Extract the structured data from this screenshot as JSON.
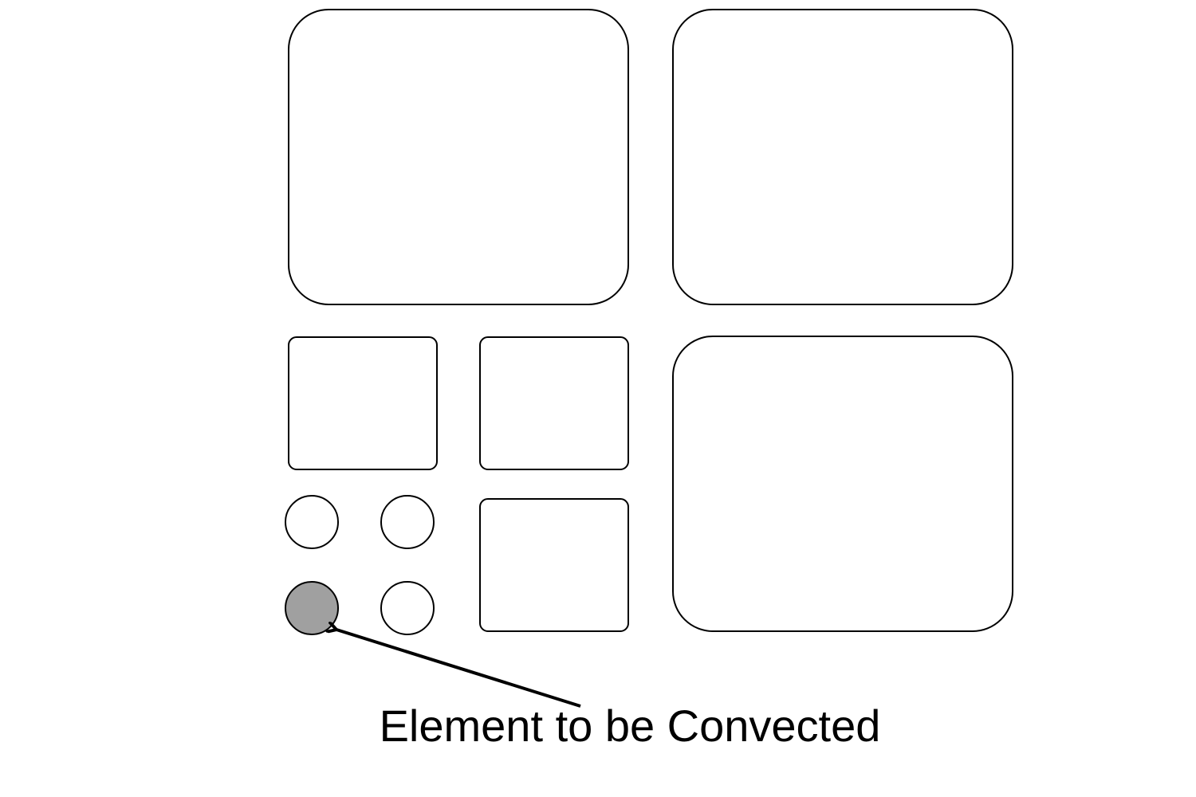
{
  "diagram": {
    "caption": "Element to be Convected",
    "highlight_color": "#a0a0a0",
    "stroke_color": "#000000",
    "background_color": "#ffffff",
    "highlighted_element": "circle-level-3-bottom-left"
  }
}
